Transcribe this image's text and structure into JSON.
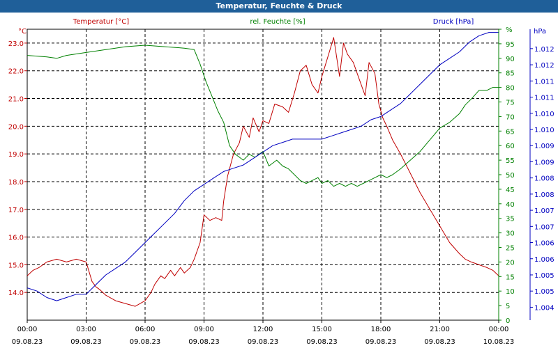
{
  "window": {
    "title": "Temperatur, Feuchte & Druck"
  },
  "chart_data": {
    "type": "line",
    "title": "Temperatur, Feuchte & Druck",
    "grid": true,
    "x_hours": [
      0,
      3,
      6,
      9,
      12,
      15,
      18,
      21,
      24
    ],
    "x_tick_times": [
      "00:00",
      "03:00",
      "06:00",
      "09:00",
      "12:00",
      "15:00",
      "18:00",
      "21:00",
      "00:00"
    ],
    "x_tick_dates": [
      "09.08.23",
      "09.08.23",
      "09.08.23",
      "09.08.23",
      "09.08.23",
      "09.08.23",
      "09.08.23",
      "09.08.23",
      "10.08.23"
    ],
    "xlim": [
      0,
      24
    ],
    "axes": {
      "temperature": {
        "label": "Temperatur [°C]",
        "unit": "°C",
        "color": "#c00000",
        "ylim": [
          13.0,
          23.5
        ],
        "ticks": [
          14.0,
          15.0,
          16.0,
          17.0,
          18.0,
          19.0,
          20.0,
          21.0,
          22.0,
          23.0
        ],
        "tick_labels": [
          "14.0",
          "15.0",
          "16.0",
          "17.0",
          "18.0",
          "19.0",
          "20.0",
          "21.0",
          "22.0",
          "23.0"
        ]
      },
      "humidity": {
        "label": "rel. Feuchte [%]",
        "unit": "%",
        "color": "#008000",
        "ylim": [
          0,
          100
        ],
        "ticks": [
          0,
          5,
          10,
          15,
          20,
          25,
          30,
          35,
          40,
          45,
          50,
          55,
          60,
          65,
          70,
          75,
          80,
          85,
          90,
          95,
          100
        ],
        "tick_labels": [
          "0",
          "5",
          "10",
          "15",
          "20",
          "25",
          "30",
          "35",
          "40",
          "45",
          "50",
          "55",
          "60",
          "65",
          "70",
          "75",
          "80",
          "85",
          "90",
          "95",
          "%"
        ]
      },
      "pressure": {
        "label": "Druck [hPa]",
        "unit": "hPa",
        "color": "#0000c0",
        "ylim": [
          1.0036,
          1.0126
        ],
        "ticks": [
          1.004,
          1.0045,
          1.005,
          1.0055,
          1.006,
          1.0065,
          1.007,
          1.0075,
          1.008,
          1.0085,
          1.009,
          1.0095,
          1.01,
          1.0105,
          1.011,
          1.0115,
          1.012
        ],
        "tick_labels": [
          "1.004",
          "1.005",
          "1.005",
          "1.006",
          "1.006",
          "1.007",
          "1.007",
          "1.008",
          "1.008",
          "1.009",
          "1.009",
          "1.010",
          "1.010",
          "1.011",
          "1.011",
          "1.012",
          "1.012"
        ]
      }
    },
    "series": [
      {
        "name": "Temperatur [°C]",
        "axis": "temperature",
        "color": "#c00000",
        "x": [
          0,
          0.3,
          0.6,
          1.0,
          1.5,
          2.0,
          2.5,
          3.0,
          3.3,
          3.5,
          3.7,
          4.0,
          4.5,
          5.0,
          5.5,
          6.0,
          6.3,
          6.5,
          6.8,
          7.0,
          7.3,
          7.5,
          7.8,
          8.0,
          8.3,
          8.5,
          8.8,
          9.0,
          9.3,
          9.6,
          9.9,
          10.0,
          10.2,
          10.5,
          10.8,
          11.0,
          11.3,
          11.5,
          11.8,
          12.0,
          12.3,
          12.6,
          13.0,
          13.3,
          13.6,
          13.9,
          14.2,
          14.5,
          14.8,
          15.0,
          15.3,
          15.6,
          15.9,
          16.1,
          16.3,
          16.6,
          16.9,
          17.2,
          17.4,
          17.7,
          17.9,
          18.1,
          18.3,
          18.6,
          19.0,
          19.5,
          20.0,
          20.5,
          21.0,
          21.5,
          22.0,
          22.3,
          22.6,
          23.0,
          23.4,
          23.7,
          24.0
        ],
        "values": [
          14.6,
          14.8,
          14.9,
          15.1,
          15.2,
          15.1,
          15.2,
          15.1,
          14.4,
          14.2,
          14.1,
          13.9,
          13.7,
          13.6,
          13.5,
          13.7,
          14.0,
          14.3,
          14.6,
          14.5,
          14.8,
          14.6,
          14.9,
          14.7,
          14.9,
          15.2,
          15.8,
          16.8,
          16.6,
          16.7,
          16.6,
          17.3,
          18.2,
          19.0,
          19.4,
          20.0,
          19.6,
          20.3,
          19.8,
          20.2,
          20.1,
          20.8,
          20.7,
          20.5,
          21.2,
          22.0,
          22.2,
          21.5,
          21.2,
          21.8,
          22.5,
          23.2,
          21.8,
          23.0,
          22.6,
          22.3,
          21.7,
          21.1,
          22.3,
          21.9,
          20.8,
          20.3,
          20.0,
          19.5,
          19.0,
          18.3,
          17.6,
          17.0,
          16.4,
          15.8,
          15.4,
          15.2,
          15.1,
          15.0,
          14.9,
          14.8,
          14.6
        ]
      },
      {
        "name": "rel. Feuchte [%]",
        "axis": "humidity",
        "color": "#008000",
        "x": [
          0,
          1.0,
          1.5,
          2.0,
          3.0,
          4.0,
          5.0,
          6.0,
          7.0,
          8.0,
          8.5,
          8.8,
          9.1,
          9.4,
          9.7,
          10.0,
          10.3,
          10.6,
          10.8,
          11.0,
          11.3,
          11.6,
          12.0,
          12.3,
          12.7,
          13.0,
          13.3,
          13.6,
          13.9,
          14.2,
          14.5,
          14.8,
          15.0,
          15.3,
          15.6,
          15.9,
          16.2,
          16.5,
          16.8,
          17.1,
          17.4,
          17.7,
          18.0,
          18.3,
          18.6,
          19.0,
          19.5,
          20.0,
          20.5,
          21.0,
          21.5,
          22.0,
          22.3,
          22.6,
          23.0,
          23.4,
          23.7,
          24.0
        ],
        "values": [
          91,
          90.5,
          90,
          91,
          92,
          93,
          94,
          94.5,
          94,
          93.5,
          93,
          88,
          82,
          77,
          72,
          68,
          60,
          57,
          56,
          55,
          57,
          56,
          58,
          53,
          55,
          53,
          52,
          50,
          48,
          47,
          48,
          49,
          47,
          48,
          46,
          47,
          46,
          47,
          46,
          47,
          48,
          49,
          50,
          49,
          50,
          52,
          55,
          58,
          62,
          66,
          68,
          71,
          74,
          76,
          79,
          79,
          80,
          80
        ]
      },
      {
        "name": "Druck [hPa]",
        "axis": "pressure",
        "color": "#0000c0",
        "x": [
          0,
          0.5,
          1.0,
          1.5,
          2.0,
          2.5,
          3.0,
          3.5,
          4.0,
          4.5,
          5.0,
          5.5,
          6.0,
          6.5,
          7.0,
          7.5,
          8.0,
          8.5,
          9.0,
          9.5,
          10.0,
          10.5,
          11.0,
          11.5,
          12.0,
          12.5,
          13.0,
          13.5,
          14.0,
          14.5,
          15.0,
          15.5,
          16.0,
          16.5,
          17.0,
          17.5,
          18.0,
          18.5,
          19.0,
          19.5,
          20.0,
          20.5,
          21.0,
          21.5,
          22.0,
          22.5,
          23.0,
          23.5,
          24.0
        ],
        "values": [
          1.0046,
          1.0045,
          1.0043,
          1.0042,
          1.0043,
          1.0044,
          1.0044,
          1.0047,
          1.005,
          1.0052,
          1.0054,
          1.0057,
          1.006,
          1.0063,
          1.0066,
          1.0069,
          1.0073,
          1.0076,
          1.0078,
          1.008,
          1.0082,
          1.0083,
          1.0084,
          1.0086,
          1.0088,
          1.009,
          1.0091,
          1.0092,
          1.0092,
          1.0092,
          1.0092,
          1.0093,
          1.0094,
          1.0095,
          1.0096,
          1.0098,
          1.0099,
          1.0101,
          1.0103,
          1.0106,
          1.0109,
          1.0112,
          1.0115,
          1.0117,
          1.0119,
          1.0122,
          1.0124,
          1.0125,
          1.0125
        ]
      }
    ]
  }
}
